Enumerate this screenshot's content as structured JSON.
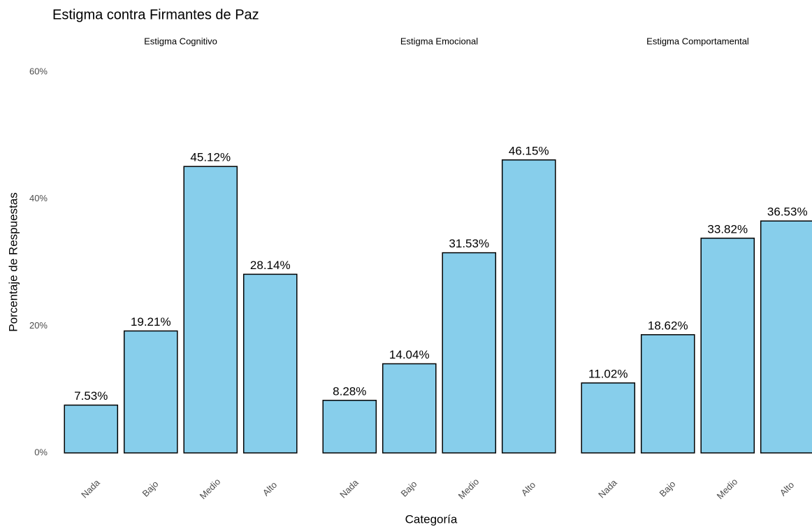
{
  "chart_data": {
    "type": "bar",
    "title": "Estigma contra Firmantes de Paz",
    "x_label": "Categoría",
    "y_label": "Porcentaje de Respuestas",
    "color": "#87ceeb",
    "ylim": [
      0,
      60
    ],
    "yticks": [
      {
        "value": 0,
        "label": "0%"
      },
      {
        "value": 20,
        "label": "20%"
      },
      {
        "value": 40,
        "label": "40%"
      },
      {
        "value": 60,
        "label": "60%"
      }
    ],
    "facets": [
      {
        "title": "Estigma Cognitivo",
        "categories": [
          "Nada",
          "Bajo",
          "Medio",
          "Alto"
        ],
        "values": [
          7.53,
          19.21,
          45.12,
          28.14
        ],
        "value_labels": [
          "7.53%",
          "19.21%",
          "45.12%",
          "28.14%"
        ]
      },
      {
        "title": "Estigma Emocional",
        "categories": [
          "Nada",
          "Bajo",
          "Medio",
          "Alto"
        ],
        "values": [
          8.28,
          14.04,
          31.53,
          46.15
        ],
        "value_labels": [
          "8.28%",
          "14.04%",
          "31.53%",
          "46.15%"
        ]
      },
      {
        "title": "Estigma Comportamental",
        "categories": [
          "Nada",
          "Bajo",
          "Medio",
          "Alto"
        ],
        "values": [
          11.02,
          18.62,
          33.82,
          36.53
        ],
        "value_labels": [
          "11.02%",
          "18.62%",
          "33.82%",
          "36.53%"
        ]
      }
    ]
  }
}
